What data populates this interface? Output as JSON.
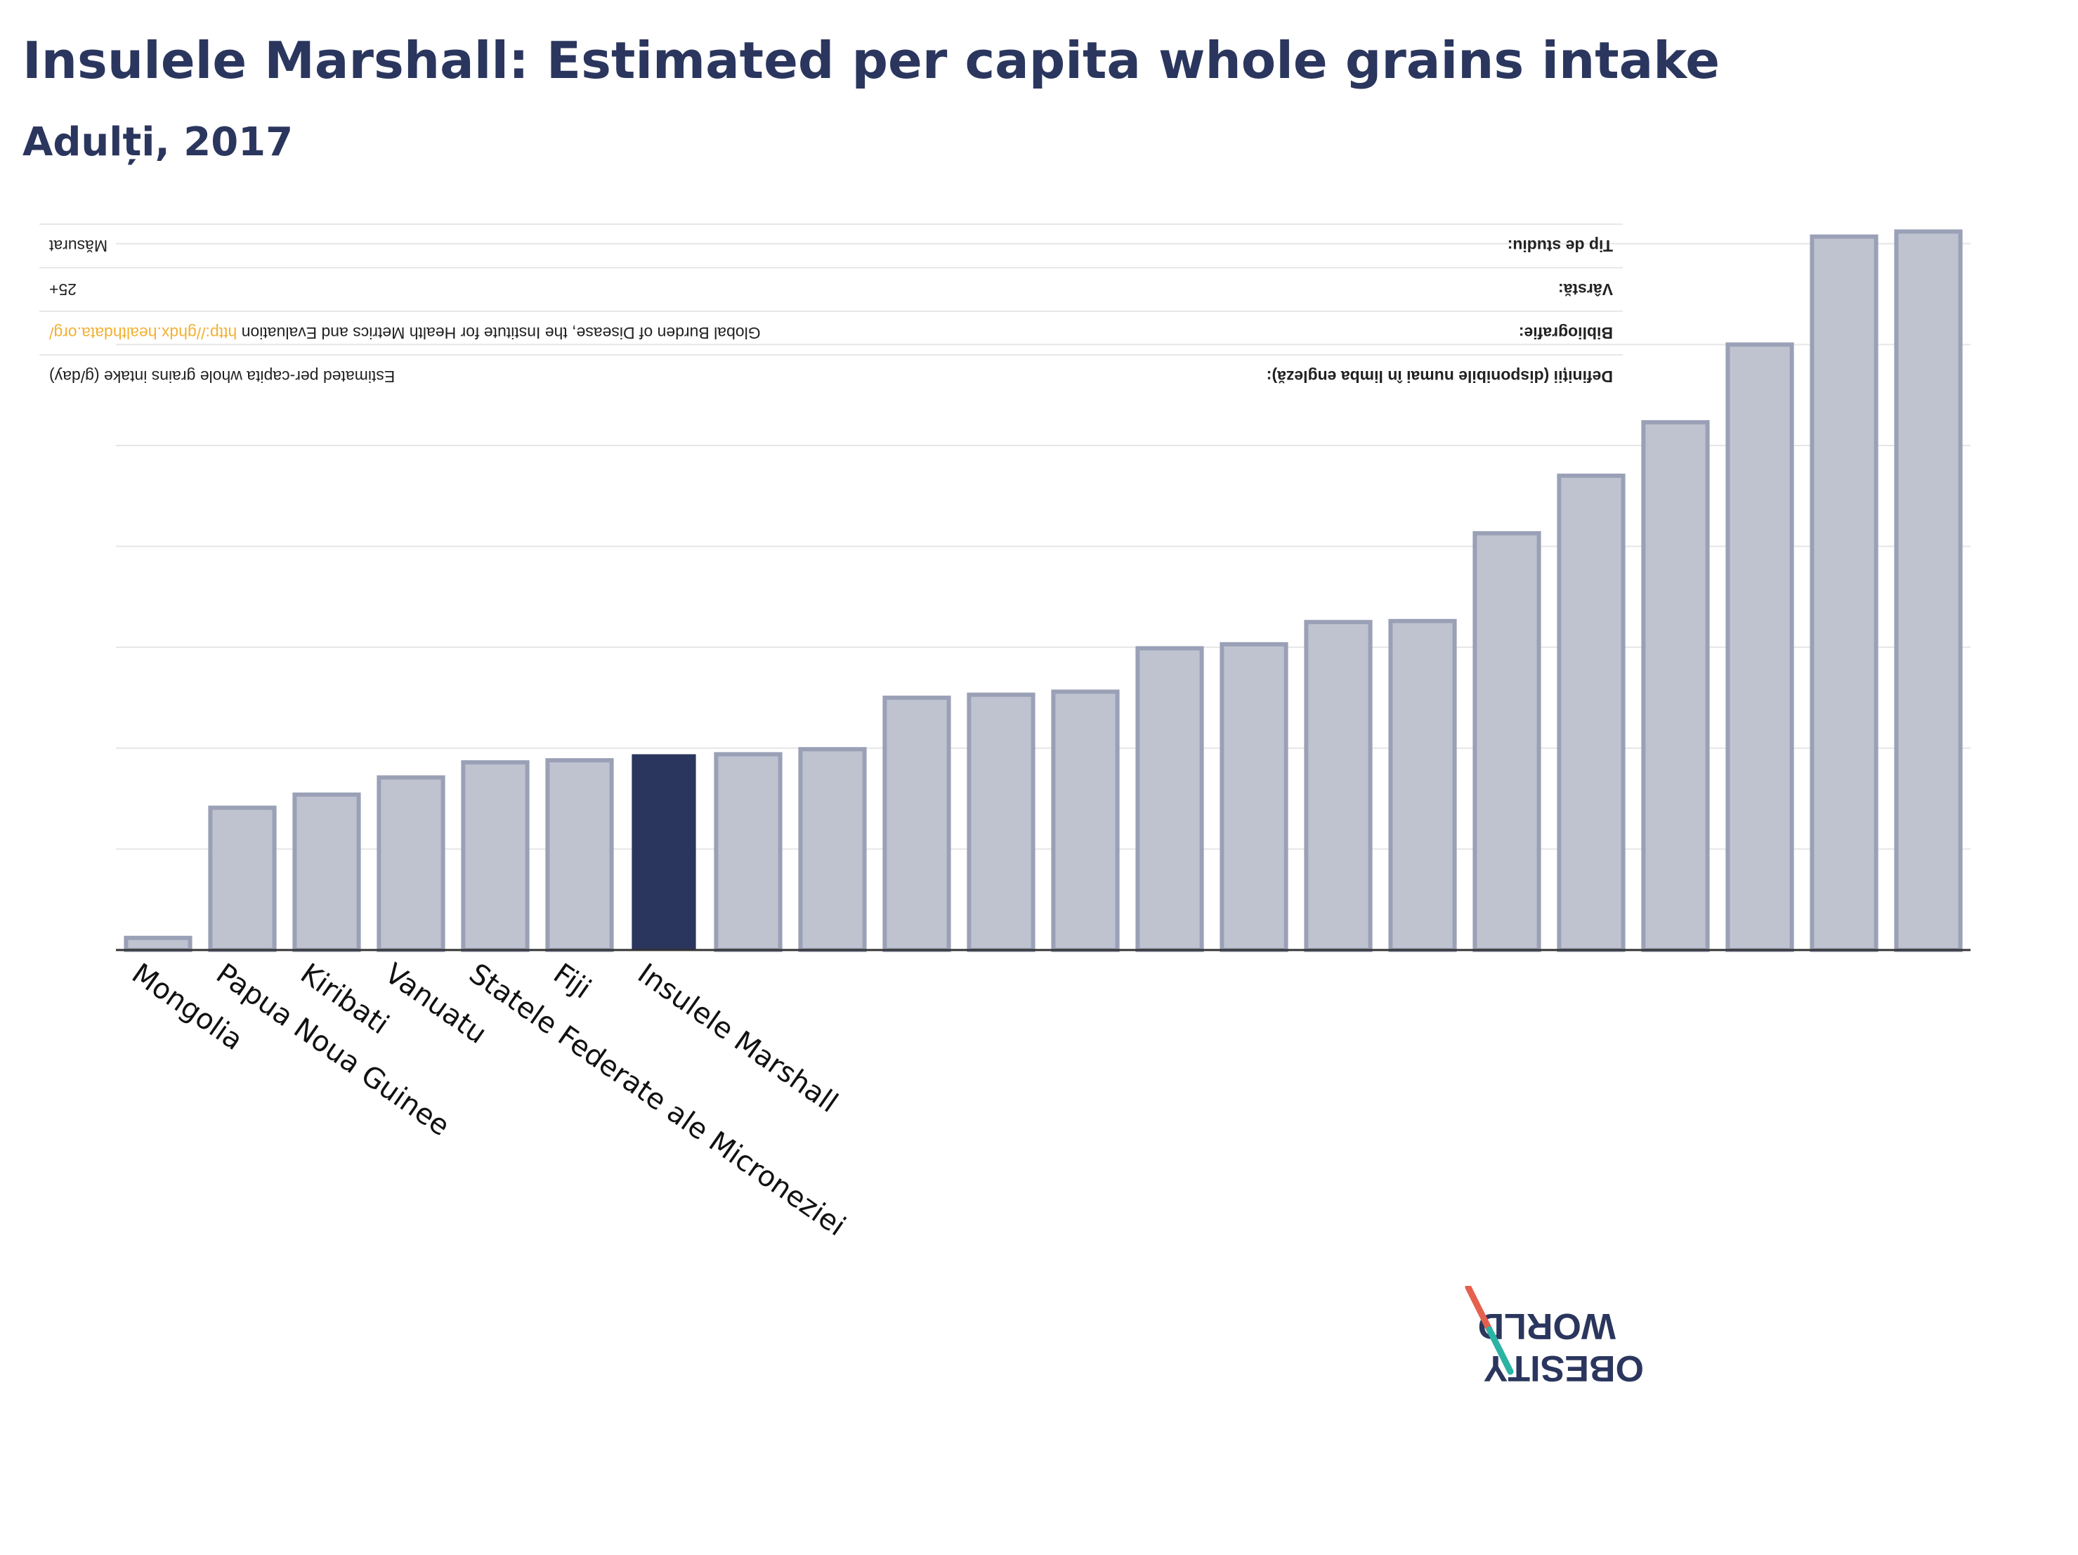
{
  "title": "Insulele Marshall: Estimated per capita whole grains intake",
  "subtitle": "Adulți, 2017",
  "colors": {
    "highlight": "#2b365e",
    "bar": "#bfc3d0",
    "bar_border": "#9aa0b6",
    "grid": "#e6e6e6",
    "axis": "#333333",
    "link": "#f2b134",
    "logo_red": "#e5604d",
    "logo_teal": "#2bb3a3"
  },
  "meta": {
    "rows": [
      {
        "key": "Tip de studiu:",
        "value": "Măsurat"
      },
      {
        "key": "Vârstă:",
        "value": "25+"
      },
      {
        "key": "Bibliografie:",
        "value": "Global Burden of Disease, the Institute for Health Metrics and Evaluation",
        "link": "http://ghdx.healthdata.org/"
      },
      {
        "key": "Definiții (disponibile numai în limba engleză):",
        "value": "Estimated per-capita whole grains intake (g/day)"
      }
    ]
  },
  "logo": {
    "line1": "OBESITY",
    "line2": "WORLD",
    "icon": "world-obesity-logo"
  },
  "chart_data": {
    "type": "bar",
    "title": "Insulele Marshall: Estimated per capita whole grains intake",
    "subtitle": "Adulți, 2017",
    "xlabel": "",
    "ylabel": "",
    "ylim": [
      0,
      72
    ],
    "grid": true,
    "categories": [
      "Mongolia",
      "Papua Noua Guinee",
      "Kiribati",
      "Vanuatu",
      "Statele Federate ale Microneziei",
      "Fiji",
      "Insulele Marshall",
      "",
      "",
      "",
      "",
      "",
      "",
      "",
      "",
      "",
      "",
      "",
      "",
      "",
      "",
      ""
    ],
    "values": [
      1.2,
      14.1,
      15.4,
      17.1,
      18.6,
      18.8,
      19.4,
      19.4,
      19.9,
      25.0,
      25.3,
      25.6,
      29.9,
      30.3,
      32.5,
      32.6,
      41.3,
      47.0,
      52.3,
      60.0,
      70.7,
      71.2
    ],
    "highlight_index": 6
  }
}
